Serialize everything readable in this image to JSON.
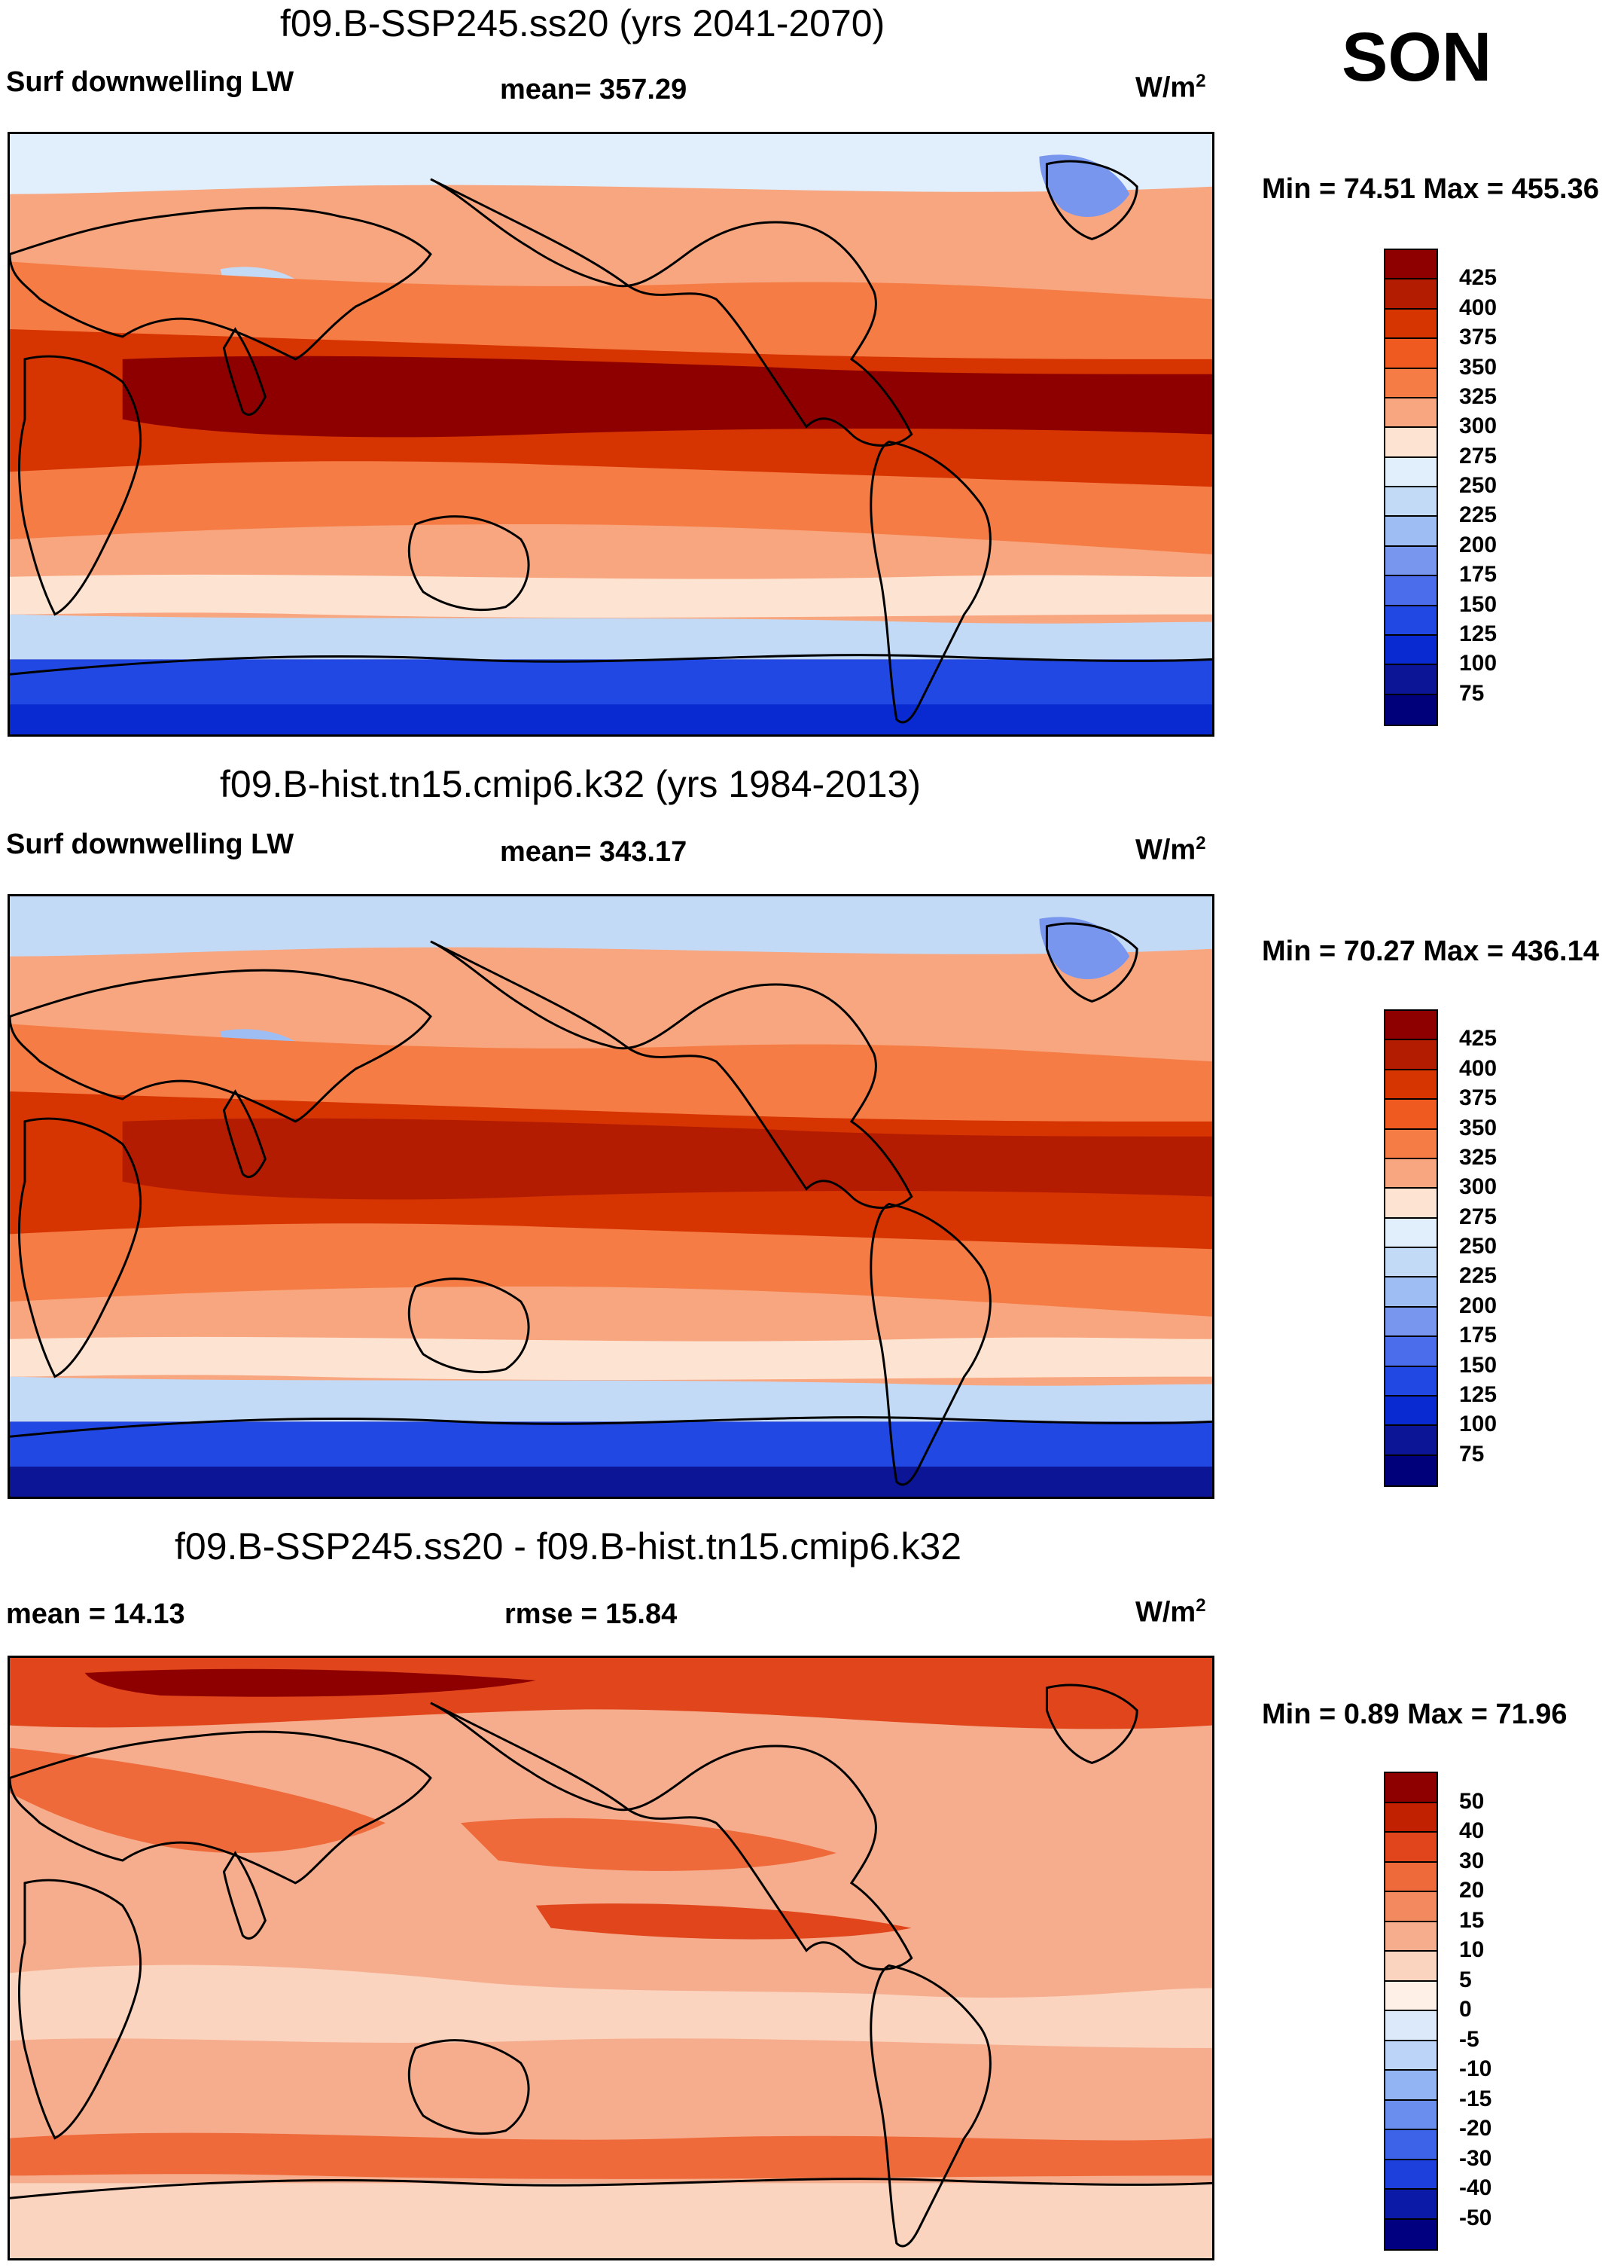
{
  "season": "SON",
  "panels": [
    {
      "title": "f09.B-SSP245.ss20 (yrs 2041-2070)",
      "left_label": "Surf downwelling LW",
      "center_label": "mean= 357.29",
      "unit": "W/m",
      "unit_sup": "2",
      "min_max": "Min =  74.51 Max = 455.36",
      "colorbar": {
        "labels": [
          "425",
          "400",
          "375",
          "350",
          "325",
          "300",
          "275",
          "250",
          "225",
          "200",
          "175",
          "150",
          "125",
          "100",
          "75"
        ],
        "colors": [
          "#8e0000",
          "#b31c00",
          "#d63400",
          "#ee5a20",
          "#f57c45",
          "#f8a67f",
          "#fde3d2",
          "#e1eefb",
          "#c3daf6",
          "#9dbdf3",
          "#7896ee",
          "#4b6deb",
          "#2148e3",
          "#0a2ad1",
          "#0b1596",
          "#00007a"
        ]
      },
      "field": "absolute"
    },
    {
      "title": "f09.B-hist.tn15.cmip6.k32 (yrs 1984-2013)",
      "left_label": "Surf downwelling LW",
      "center_label": "mean= 343.17",
      "unit": "W/m",
      "unit_sup": "2",
      "min_max": "Min =  70.27 Max = 436.14",
      "colorbar": {
        "labels": [
          "425",
          "400",
          "375",
          "350",
          "325",
          "300",
          "275",
          "250",
          "225",
          "200",
          "175",
          "150",
          "125",
          "100",
          "75"
        ],
        "colors": [
          "#8e0000",
          "#b31c00",
          "#d63400",
          "#ee5a20",
          "#f57c45",
          "#f8a67f",
          "#fde3d2",
          "#e1eefb",
          "#c3daf6",
          "#9dbdf3",
          "#7896ee",
          "#4b6deb",
          "#2148e3",
          "#0a2ad1",
          "#0b1596",
          "#00007a"
        ]
      },
      "field": "absolute-hist"
    },
    {
      "title": "f09.B-SSP245.ss20 - f09.B-hist.tn15.cmip6.k32",
      "left_label": "mean =  14.13",
      "center_label": "rmse =  15.84",
      "unit": "W/m",
      "unit_sup": "2",
      "min_max": "Min =   0.89 Max =  71.96",
      "colorbar": {
        "labels": [
          "50",
          "40",
          "30",
          "20",
          "15",
          "10",
          "5",
          "0",
          "-5",
          "-10",
          "-15",
          "-20",
          "-30",
          "-40",
          "-50"
        ],
        "colors": [
          "#8e0000",
          "#c12100",
          "#e0451b",
          "#ee6a3a",
          "#f38a5f",
          "#f6ad8d",
          "#fbd4bf",
          "#fef0e6",
          "#dce9fb",
          "#bcd4f7",
          "#93b4f2",
          "#6a8eed",
          "#3d63e8",
          "#1d3fdc",
          "#0b1ba8",
          "#000080"
        ]
      },
      "field": "difference"
    }
  ]
}
